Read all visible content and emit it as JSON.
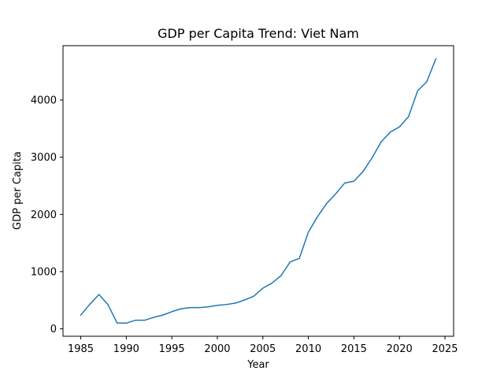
{
  "chart_data": {
    "type": "line",
    "title": "GDP per Capita Trend: Viet Nam",
    "xlabel": "Year",
    "ylabel": "GDP per Capita",
    "xlim": [
      1983.05,
      2025.95
    ],
    "ylim": [
      -130,
      4950
    ],
    "grid": false,
    "legend": "none",
    "x_ticks": [
      1985,
      1990,
      1995,
      2000,
      2005,
      2010,
      2015,
      2020,
      2025
    ],
    "y_ticks": [
      0,
      1000,
      2000,
      3000,
      4000
    ],
    "series": [
      {
        "color": "#1f77b4",
        "x": [
          1985,
          1986,
          1987,
          1988,
          1989,
          1990,
          1991,
          1992,
          1993,
          1994,
          1995,
          1996,
          1997,
          1998,
          1999,
          2000,
          2001,
          2002,
          2003,
          2004,
          2005,
          2006,
          2007,
          2008,
          2009,
          2010,
          2011,
          2012,
          2013,
          2014,
          2015,
          2016,
          2017,
          2018,
          2019,
          2020,
          2021,
          2022,
          2023,
          2024
        ],
        "y": [
          240,
          430,
          600,
          420,
          100,
          100,
          150,
          150,
          200,
          240,
          300,
          350,
          370,
          370,
          385,
          410,
          425,
          450,
          505,
          570,
          710,
          800,
          930,
          1170,
          1230,
          1690,
          1960,
          2190,
          2360,
          2550,
          2580,
          2750,
          2990,
          3270,
          3440,
          3530,
          3710,
          4160,
          4320,
          4720
        ]
      }
    ]
  }
}
